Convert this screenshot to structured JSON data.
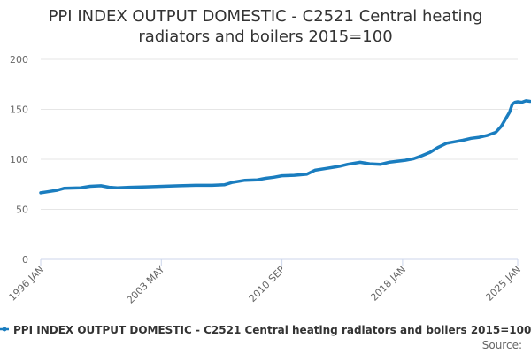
{
  "chart_data": {
    "type": "line",
    "title_lines": [
      "PPI INDEX OUTPUT DOMESTIC - C2521 Central heating",
      "radiators and boilers 2015=100"
    ],
    "xlabel": "",
    "ylabel": "",
    "ylim": [
      0,
      200
    ],
    "yticks": [
      0,
      50,
      100,
      150,
      200
    ],
    "x_range": [
      "1996-01",
      "2025-01"
    ],
    "xtick_labels": [
      {
        "label": "1996 JAN",
        "date": "1996-01"
      },
      {
        "label": "2003 MAY",
        "date": "2003-05"
      },
      {
        "label": "2010 SEP",
        "date": "2010-09"
      },
      {
        "label": "2018 JAN",
        "date": "2018-01"
      },
      {
        "label": "2025 JAN",
        "date": "2025-01"
      }
    ],
    "grid": "horizontal",
    "legend_position": "bottom",
    "series": [
      {
        "name": "PPI INDEX OUTPUT DOMESTIC - C2521 Central heating radiators and boilers 2015=100",
        "color": "#1a7dbf",
        "points": [
          [
            "1996-01",
            66.5
          ],
          [
            "1996-06",
            67.5
          ],
          [
            "1997-01",
            69
          ],
          [
            "1997-06",
            71
          ],
          [
            "1998-06",
            71.5
          ],
          [
            "1999-01",
            73
          ],
          [
            "1999-09",
            73.5
          ],
          [
            "2000-03",
            72
          ],
          [
            "2000-09",
            71.5
          ],
          [
            "2001-06",
            72
          ],
          [
            "2002-06",
            72.5
          ],
          [
            "2003-06",
            73
          ],
          [
            "2004-06",
            73.5
          ],
          [
            "2005-06",
            74
          ],
          [
            "2006-06",
            74
          ],
          [
            "2007-03",
            74.5
          ],
          [
            "2007-09",
            77
          ],
          [
            "2008-06",
            79
          ],
          [
            "2009-03",
            79.5
          ],
          [
            "2009-09",
            81
          ],
          [
            "2010-03",
            82
          ],
          [
            "2010-09",
            83.5
          ],
          [
            "2011-06",
            84
          ],
          [
            "2012-03",
            85
          ],
          [
            "2012-09",
            89
          ],
          [
            "2013-06",
            91
          ],
          [
            "2014-03",
            93
          ],
          [
            "2014-09",
            95
          ],
          [
            "2015-06",
            97
          ],
          [
            "2016-01",
            95.5
          ],
          [
            "2016-09",
            95
          ],
          [
            "2017-03",
            97
          ],
          [
            "2017-09",
            98
          ],
          [
            "2018-03",
            99
          ],
          [
            "2018-09",
            100.5
          ],
          [
            "2019-03",
            103.5
          ],
          [
            "2019-09",
            107
          ],
          [
            "2020-03",
            112
          ],
          [
            "2020-09",
            116
          ],
          [
            "2021-03",
            117.5
          ],
          [
            "2021-09",
            119
          ],
          [
            "2022-03",
            121
          ],
          [
            "2022-09",
            122
          ],
          [
            "2023-03",
            124
          ],
          [
            "2023-09",
            127
          ],
          [
            "2024-01",
            133
          ],
          [
            "2024-04",
            140
          ],
          [
            "2024-07",
            147
          ],
          [
            "2024-09",
            155
          ],
          [
            "2024-11",
            157
          ],
          [
            "2025-01",
            157.5
          ],
          [
            "2025-04",
            157
          ],
          [
            "2025-07",
            158.5
          ],
          [
            "2025-10",
            158
          ]
        ]
      }
    ]
  },
  "source_label": "Source:"
}
